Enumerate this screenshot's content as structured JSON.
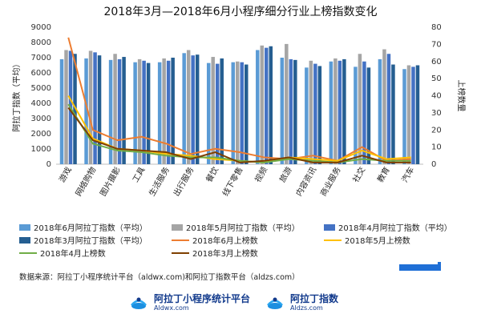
{
  "chart_data": {
    "type": "bar",
    "title": "2018年3月—2018年6月小程序细分行业上榜指数变化",
    "ylabel": "阿拉丁指数（平均）",
    "y2label": "上榜数量",
    "ylim": [
      0,
      9000
    ],
    "y2lim": [
      0,
      80
    ],
    "yticks": [
      0,
      1000,
      2000,
      3000,
      4000,
      5000,
      6000,
      7000,
      8000,
      9000
    ],
    "y2ticks": [
      0,
      10,
      20,
      30,
      40,
      50,
      60,
      70,
      80
    ],
    "categories": [
      "游戏",
      "网络购物",
      "图片摄影",
      "工具",
      "生活服务",
      "出行服务",
      "餐饮",
      "线下零售",
      "视频",
      "旅游",
      "内容资讯",
      "商业服务",
      "社交",
      "教育",
      "汽车"
    ],
    "series": [
      {
        "name": "2018年6月阿拉丁指数（平均）",
        "kind": "bar",
        "axis": "left",
        "color": "#5b9bd5",
        "values": [
          6900,
          6950,
          6850,
          6700,
          6700,
          7300,
          6650,
          6700,
          7500,
          7000,
          6350,
          6750,
          6400,
          6900,
          6250
        ]
      },
      {
        "name": "2018年5月阿拉丁指数（平均）",
        "kind": "bar",
        "axis": "left",
        "color": "#a5a5a5",
        "values": [
          7500,
          7450,
          7250,
          6900,
          6950,
          7500,
          7050,
          6750,
          7800,
          7900,
          6800,
          6950,
          7250,
          7550,
          6500
        ]
      },
      {
        "name": "2018年4月阿拉丁指数（平均）",
        "kind": "bar",
        "axis": "left",
        "color": "#4472c4",
        "values": [
          7450,
          7350,
          6900,
          6800,
          6800,
          7150,
          6600,
          6700,
          7650,
          6900,
          6600,
          6800,
          6750,
          7250,
          6400
        ]
      },
      {
        "name": "2018年3月阿拉丁指数（平均）",
        "kind": "bar",
        "axis": "left",
        "color": "#255e91",
        "values": [
          7250,
          7150,
          7050,
          6650,
          7000,
          7200,
          6950,
          6550,
          7750,
          6850,
          6450,
          6900,
          6350,
          6550,
          6500
        ]
      },
      {
        "name": "2018年6月上榜数",
        "kind": "line",
        "axis": "right",
        "color": "#ed7d31",
        "values": [
          74,
          20,
          14,
          16,
          12,
          6,
          9,
          7,
          4,
          3,
          5,
          2,
          10,
          2,
          3
        ]
      },
      {
        "name": "2018年5月上榜数",
        "kind": "line",
        "axis": "right",
        "color": "#ffc000",
        "values": [
          40,
          15,
          9,
          8,
          6,
          5,
          3,
          2,
          1,
          4,
          3,
          2,
          8,
          3,
          4
        ]
      },
      {
        "name": "2018年4月上榜数",
        "kind": "line",
        "axis": "right",
        "color": "#70ad47",
        "values": [
          35,
          12,
          8,
          7,
          5,
          4,
          4,
          2,
          1,
          3,
          2,
          1,
          3,
          2,
          2
        ]
      },
      {
        "name": "2018年3月上榜数",
        "kind": "line",
        "axis": "right",
        "color": "#7f3f00",
        "values": [
          33,
          14,
          9,
          8,
          7,
          3,
          7,
          1,
          2,
          4,
          1,
          1,
          5,
          1,
          1
        ]
      }
    ],
    "legend_position": "bottom",
    "grid": false
  },
  "source_text": "数据来源：阿拉丁小程序统计平台（aldwx.com)和阿拉丁指数平台（aldzs.com）",
  "logos": [
    {
      "name": "阿拉丁小程序统计平台",
      "sub": "Aldwx.com"
    },
    {
      "name": "阿拉丁指数",
      "sub": "Aldzs.com"
    }
  ]
}
